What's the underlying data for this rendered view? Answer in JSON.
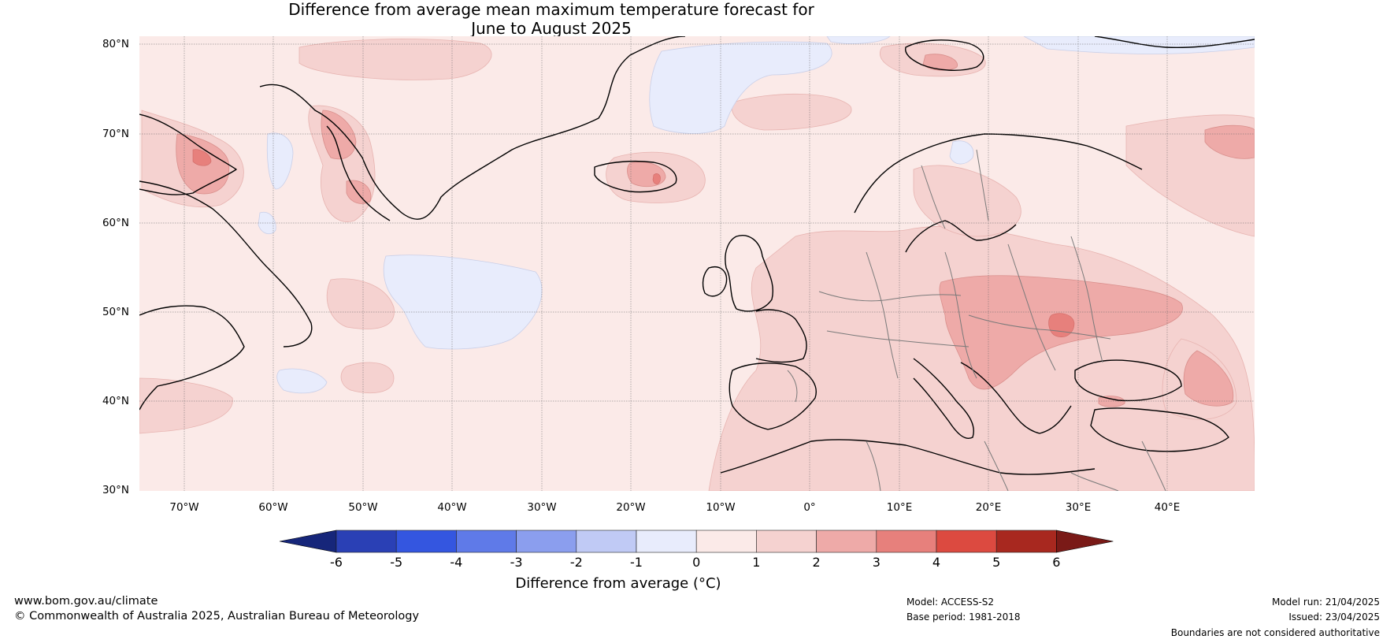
{
  "title": {
    "line1": "Difference from average mean maximum temperature forecast for",
    "line2": "June to August 2025"
  },
  "latitude_labels": [
    "80°N",
    "70°N",
    "60°N",
    "50°N",
    "40°N",
    "30°N"
  ],
  "longitude_labels": [
    "70°W",
    "60°W",
    "50°W",
    "40°W",
    "30°W",
    "20°W",
    "10°W",
    "0°",
    "10°E",
    "20°E",
    "30°E",
    "40°E"
  ],
  "colorbar": {
    "title": "Difference from average (°C)",
    "tick_labels": [
      "-6",
      "-5",
      "-4",
      "-3",
      "-2",
      "-1",
      "0",
      "1",
      "2",
      "3",
      "4",
      "5",
      "6"
    ],
    "colors": [
      "#16267a",
      "#2a40b5",
      "#3456e0",
      "#5f7ae8",
      "#8b9eee",
      "#c0caf5",
      "#e8ecfc",
      "#fbeae8",
      "#f5d2d0",
      "#eeaaa8",
      "#e7807c",
      "#dc4a40",
      "#a8281f",
      "#7a1a17"
    ]
  },
  "footer": {
    "website": "www.bom.gov.au/climate",
    "copyright": "© Commonwealth of Australia 2025, Australian Bureau of Meteorology",
    "model": "Model: ACCESS-S2",
    "base_period": "Base period: 1981-2018",
    "model_run": "Model run: 21/04/2025",
    "issued": "Issued: 23/04/2025",
    "disclaimer": "Boundaries are not considered authoritative"
  }
}
